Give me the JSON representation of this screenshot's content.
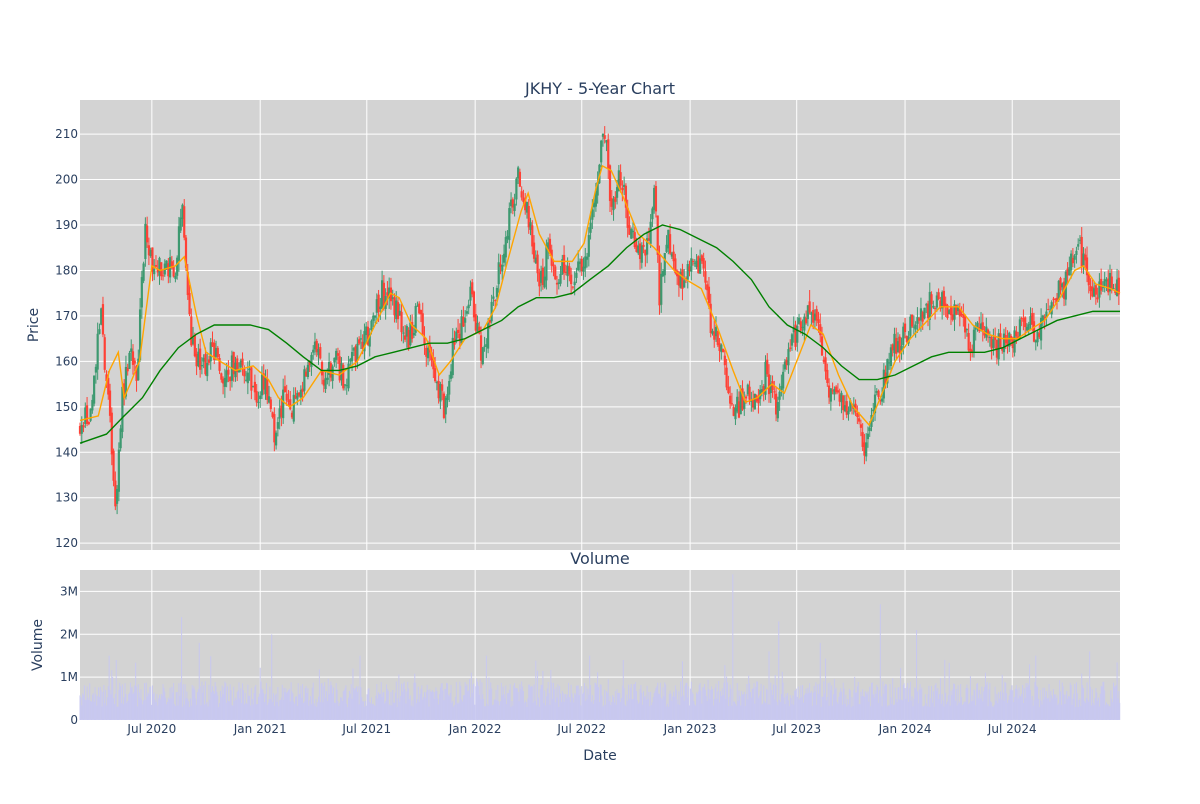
{
  "chart_data": [
    {
      "type": "candlestick",
      "title": "JKHY - 5-Year Chart",
      "ylabel": "Price",
      "ylim": [
        118.5,
        217.5
      ],
      "yticks": [
        120,
        130,
        140,
        150,
        160,
        170,
        180,
        190,
        200,
        210
      ],
      "xlim": [
        "2020-03-01",
        "2024-12-31"
      ],
      "xticks": [
        {
          "date": "2020-07-01",
          "label": "Jul 2020"
        },
        {
          "date": "2021-01-01",
          "label": "Jan 2021"
        },
        {
          "date": "2021-07-01",
          "label": "Jul 2021"
        },
        {
          "date": "2022-01-01",
          "label": "Jan 2022"
        },
        {
          "date": "2022-07-01",
          "label": "Jul 2022"
        },
        {
          "date": "2023-01-01",
          "label": "Jan 2023"
        },
        {
          "date": "2023-07-01",
          "label": "Jul 2023"
        },
        {
          "date": "2024-01-01",
          "label": "Jan 2024"
        },
        {
          "date": "2024-07-01",
          "label": "Jul 2024"
        }
      ],
      "grid": true,
      "colors": {
        "up": "#3d9970",
        "down": "#ff4136",
        "ma_short": "#ffa500",
        "ma_long": "#008000",
        "plot_bg": "#d3d3d3"
      },
      "close_series": [
        [
          "2020-03-01",
          145
        ],
        [
          "2020-03-20",
          150
        ],
        [
          "2020-04-05",
          170
        ],
        [
          "2020-04-20",
          150
        ],
        [
          "2020-05-01",
          127
        ],
        [
          "2020-05-10",
          150
        ],
        [
          "2020-05-25",
          163
        ],
        [
          "2020-06-05",
          157
        ],
        [
          "2020-06-20",
          188
        ],
        [
          "2020-07-05",
          180
        ],
        [
          "2020-07-25",
          181
        ],
        [
          "2020-08-10",
          180
        ],
        [
          "2020-08-20",
          196
        ],
        [
          "2020-09-05",
          165
        ],
        [
          "2020-09-25",
          157
        ],
        [
          "2020-10-10",
          163
        ],
        [
          "2020-11-01",
          157
        ],
        [
          "2020-11-20",
          160
        ],
        [
          "2020-12-10",
          158
        ],
        [
          "2020-12-25",
          152
        ],
        [
          "2021-01-10",
          156
        ],
        [
          "2021-01-25",
          145
        ],
        [
          "2021-02-10",
          152
        ],
        [
          "2021-02-25",
          149
        ],
        [
          "2021-03-15",
          155
        ],
        [
          "2021-04-05",
          165
        ],
        [
          "2021-04-20",
          155
        ],
        [
          "2021-05-10",
          160
        ],
        [
          "2021-05-25",
          155
        ],
        [
          "2021-06-15",
          164
        ],
        [
          "2021-07-05",
          165
        ],
        [
          "2021-07-25",
          175
        ],
        [
          "2021-08-10",
          175
        ],
        [
          "2021-08-25",
          170
        ],
        [
          "2021-09-10",
          164
        ],
        [
          "2021-09-25",
          172
        ],
        [
          "2021-10-10",
          163
        ],
        [
          "2021-10-25",
          155
        ],
        [
          "2021-11-10",
          150
        ],
        [
          "2021-11-25",
          164
        ],
        [
          "2021-12-10",
          168
        ],
        [
          "2021-12-25",
          176
        ],
        [
          "2022-01-10",
          162
        ],
        [
          "2022-01-25",
          169
        ],
        [
          "2022-02-10",
          180
        ],
        [
          "2022-02-25",
          190
        ],
        [
          "2022-03-15",
          200
        ],
        [
          "2022-04-05",
          190
        ],
        [
          "2022-04-20",
          175
        ],
        [
          "2022-05-05",
          186
        ],
        [
          "2022-05-20",
          178
        ],
        [
          "2022-06-05",
          182
        ],
        [
          "2022-06-20",
          178
        ],
        [
          "2022-07-10",
          185
        ],
        [
          "2022-07-25",
          200
        ],
        [
          "2022-08-10",
          210
        ],
        [
          "2022-08-20",
          195
        ],
        [
          "2022-09-05",
          200
        ],
        [
          "2022-09-20",
          190
        ],
        [
          "2022-10-05",
          185
        ],
        [
          "2022-10-20",
          185
        ],
        [
          "2022-11-01",
          200
        ],
        [
          "2022-11-10",
          175
        ],
        [
          "2022-11-25",
          188
        ],
        [
          "2022-12-10",
          178
        ],
        [
          "2022-12-25",
          178
        ],
        [
          "2023-01-10",
          182
        ],
        [
          "2023-01-25",
          178
        ],
        [
          "2023-02-10",
          165
        ],
        [
          "2023-02-25",
          165
        ],
        [
          "2023-03-10",
          148
        ],
        [
          "2023-03-25",
          150
        ],
        [
          "2023-04-10",
          155
        ],
        [
          "2023-04-25",
          150
        ],
        [
          "2023-05-10",
          158
        ],
        [
          "2023-05-25",
          150
        ],
        [
          "2023-06-10",
          157
        ],
        [
          "2023-06-25",
          165
        ],
        [
          "2023-07-10",
          168
        ],
        [
          "2023-07-25",
          170
        ],
        [
          "2023-08-10",
          168
        ],
        [
          "2023-08-20",
          155
        ],
        [
          "2023-09-05",
          155
        ],
        [
          "2023-09-20",
          150
        ],
        [
          "2023-10-10",
          148
        ],
        [
          "2023-10-25",
          140
        ],
        [
          "2023-11-10",
          152
        ],
        [
          "2023-11-25",
          155
        ],
        [
          "2023-12-10",
          165
        ],
        [
          "2023-12-25",
          164
        ],
        [
          "2024-01-10",
          168
        ],
        [
          "2024-01-25",
          168
        ],
        [
          "2024-02-10",
          172
        ],
        [
          "2024-02-25",
          175
        ],
        [
          "2024-03-15",
          170
        ],
        [
          "2024-04-05",
          172
        ],
        [
          "2024-04-20",
          164
        ],
        [
          "2024-05-05",
          168
        ],
        [
          "2024-05-20",
          165
        ],
        [
          "2024-06-05",
          163
        ],
        [
          "2024-06-20",
          165
        ],
        [
          "2024-07-10",
          165
        ],
        [
          "2024-07-25",
          170
        ],
        [
          "2024-08-10",
          165
        ],
        [
          "2024-08-25",
          172
        ],
        [
          "2024-09-10",
          175
        ],
        [
          "2024-09-25",
          175
        ],
        [
          "2024-10-10",
          183
        ],
        [
          "2024-10-25",
          185
        ],
        [
          "2024-11-10",
          175
        ],
        [
          "2024-11-25",
          175
        ],
        [
          "2024-12-10",
          178
        ],
        [
          "2024-12-31",
          176
        ]
      ],
      "ma_short": [
        [
          "2020-03-01",
          147
        ],
        [
          "2020-04-01",
          148
        ],
        [
          "2020-04-20",
          158
        ],
        [
          "2020-05-05",
          162
        ],
        [
          "2020-05-15",
          152
        ],
        [
          "2020-05-25",
          155
        ],
        [
          "2020-06-10",
          160
        ],
        [
          "2020-07-01",
          181
        ],
        [
          "2020-07-15",
          180
        ],
        [
          "2020-08-10",
          181
        ],
        [
          "2020-08-25",
          183
        ],
        [
          "2020-09-15",
          170
        ],
        [
          "2020-10-01",
          162
        ],
        [
          "2020-10-25",
          160
        ],
        [
          "2020-11-20",
          158
        ],
        [
          "2020-12-20",
          159
        ],
        [
          "2021-01-15",
          156
        ],
        [
          "2021-02-01",
          152
        ],
        [
          "2021-02-20",
          150
        ],
        [
          "2021-03-15",
          152
        ],
        [
          "2021-04-15",
          158
        ],
        [
          "2021-05-15",
          157
        ],
        [
          "2021-06-15",
          160
        ],
        [
          "2021-07-15",
          168
        ],
        [
          "2021-08-10",
          175
        ],
        [
          "2021-08-25",
          174
        ],
        [
          "2021-09-15",
          168
        ],
        [
          "2021-10-10",
          165
        ],
        [
          "2021-11-01",
          157
        ],
        [
          "2021-11-20",
          160
        ],
        [
          "2021-12-15",
          165
        ],
        [
          "2022-01-15",
          167
        ],
        [
          "2022-02-05",
          172
        ],
        [
          "2022-02-25",
          182
        ],
        [
          "2022-03-20",
          193
        ],
        [
          "2022-04-01",
          197
        ],
        [
          "2022-04-20",
          188
        ],
        [
          "2022-05-15",
          182
        ],
        [
          "2022-06-15",
          182
        ],
        [
          "2022-07-05",
          186
        ],
        [
          "2022-07-25",
          198
        ],
        [
          "2022-08-05",
          203
        ],
        [
          "2022-08-20",
          202
        ],
        [
          "2022-09-10",
          196
        ],
        [
          "2022-10-05",
          188
        ],
        [
          "2022-11-01",
          185
        ],
        [
          "2022-12-05",
          180
        ],
        [
          "2022-12-25",
          178
        ],
        [
          "2023-01-20",
          176
        ],
        [
          "2023-02-15",
          168
        ],
        [
          "2023-03-15",
          158
        ],
        [
          "2023-04-05",
          151
        ],
        [
          "2023-04-25",
          152
        ],
        [
          "2023-05-20",
          155
        ],
        [
          "2023-06-10",
          153
        ],
        [
          "2023-07-01",
          160
        ],
        [
          "2023-07-25",
          168
        ],
        [
          "2023-08-15",
          166
        ],
        [
          "2023-09-10",
          157
        ],
        [
          "2023-10-05",
          150
        ],
        [
          "2023-11-01",
          146
        ],
        [
          "2023-11-20",
          152
        ],
        [
          "2023-12-15",
          160
        ],
        [
          "2024-01-10",
          165
        ],
        [
          "2024-02-01",
          168
        ],
        [
          "2024-03-01",
          172
        ],
        [
          "2024-04-01",
          172
        ],
        [
          "2024-04-25",
          168
        ],
        [
          "2024-05-20",
          166
        ],
        [
          "2024-06-15",
          165
        ],
        [
          "2024-07-10",
          165
        ],
        [
          "2024-08-01",
          167
        ],
        [
          "2024-08-25",
          169
        ],
        [
          "2024-09-20",
          174
        ],
        [
          "2024-10-15",
          180
        ],
        [
          "2024-10-30",
          181
        ],
        [
          "2024-11-20",
          177
        ],
        [
          "2024-12-15",
          176
        ],
        [
          "2024-12-31",
          175
        ]
      ],
      "ma_long": [
        [
          "2020-03-01",
          142
        ],
        [
          "2020-04-15",
          144
        ],
        [
          "2020-05-15",
          148
        ],
        [
          "2020-06-15",
          152
        ],
        [
          "2020-07-15",
          158
        ],
        [
          "2020-08-15",
          163
        ],
        [
          "2020-09-15",
          166
        ],
        [
          "2020-10-15",
          168
        ],
        [
          "2020-11-15",
          168
        ],
        [
          "2020-12-15",
          168
        ],
        [
          "2021-01-15",
          167
        ],
        [
          "2021-02-15",
          164
        ],
        [
          "2021-03-15",
          161
        ],
        [
          "2021-04-15",
          158
        ],
        [
          "2021-05-15",
          158
        ],
        [
          "2021-06-15",
          159
        ],
        [
          "2021-07-15",
          161
        ],
        [
          "2021-08-15",
          162
        ],
        [
          "2021-09-15",
          163
        ],
        [
          "2021-10-15",
          164
        ],
        [
          "2021-11-15",
          164
        ],
        [
          "2021-12-15",
          165
        ],
        [
          "2022-01-15",
          167
        ],
        [
          "2022-02-15",
          169
        ],
        [
          "2022-03-15",
          172
        ],
        [
          "2022-04-15",
          174
        ],
        [
          "2022-05-15",
          174
        ],
        [
          "2022-06-15",
          175
        ],
        [
          "2022-07-15",
          178
        ],
        [
          "2022-08-15",
          181
        ],
        [
          "2022-09-15",
          185
        ],
        [
          "2022-10-15",
          188
        ],
        [
          "2022-11-15",
          190
        ],
        [
          "2022-12-15",
          189
        ],
        [
          "2023-01-15",
          187
        ],
        [
          "2023-02-15",
          185
        ],
        [
          "2023-03-15",
          182
        ],
        [
          "2023-04-15",
          178
        ],
        [
          "2023-05-15",
          172
        ],
        [
          "2023-06-15",
          168
        ],
        [
          "2023-07-15",
          166
        ],
        [
          "2023-08-15",
          163
        ],
        [
          "2023-09-15",
          159
        ],
        [
          "2023-10-15",
          156
        ],
        [
          "2023-11-15",
          156
        ],
        [
          "2023-12-15",
          157
        ],
        [
          "2024-01-15",
          159
        ],
        [
          "2024-02-15",
          161
        ],
        [
          "2024-03-15",
          162
        ],
        [
          "2024-04-15",
          162
        ],
        [
          "2024-05-15",
          162
        ],
        [
          "2024-06-15",
          163
        ],
        [
          "2024-07-15",
          165
        ],
        [
          "2024-08-15",
          167
        ],
        [
          "2024-09-15",
          169
        ],
        [
          "2024-10-15",
          170
        ],
        [
          "2024-11-15",
          171
        ],
        [
          "2024-12-31",
          171
        ]
      ]
    },
    {
      "type": "bar",
      "title": "Volume",
      "ylabel": "Volume",
      "xlabel": "Date",
      "ylim": [
        0,
        3.5
      ],
      "yticks": [
        {
          "value": 0,
          "label": "0"
        },
        {
          "value": 1,
          "label": "1M"
        },
        {
          "value": 2,
          "label": "2M"
        },
        {
          "value": 3,
          "label": "3M"
        }
      ],
      "unit": "millions of shares",
      "bar_color": "#c8c8f0",
      "spikes": [
        [
          "2020-04-20",
          1.5
        ],
        [
          "2020-05-01",
          1.4
        ],
        [
          "2020-08-20",
          2.4
        ],
        [
          "2020-09-20",
          1.8
        ],
        [
          "2021-01-20",
          2.0
        ],
        [
          "2021-06-20",
          1.5
        ],
        [
          "2022-01-20",
          1.5
        ],
        [
          "2022-07-15",
          1.5
        ],
        [
          "2022-09-10",
          1.4
        ],
        [
          "2023-03-15",
          3.4
        ],
        [
          "2023-05-15",
          1.6
        ],
        [
          "2023-06-01",
          2.3
        ],
        [
          "2023-08-10",
          1.8
        ],
        [
          "2023-11-20",
          2.7
        ],
        [
          "2024-01-20",
          2.1
        ],
        [
          "2024-08-10",
          1.5
        ],
        [
          "2024-11-10",
          1.6
        ]
      ],
      "baseline_range": [
        0.3,
        0.9
      ]
    }
  ]
}
